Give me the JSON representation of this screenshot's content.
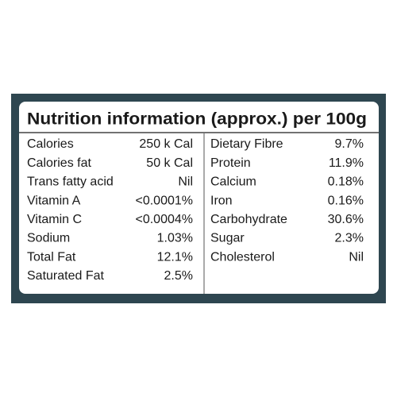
{
  "title": "Nutrition information (approx.) per 100g",
  "left": [
    [
      "Calories",
      "250 k Cal"
    ],
    [
      "Calories fat",
      "50 k Cal"
    ],
    [
      "Trans fatty acid",
      "Nil"
    ],
    [
      "Vitamin A",
      "<0.0001%"
    ],
    [
      "Vitamin C",
      "<0.0004%"
    ],
    [
      "Sodium",
      "1.03%"
    ],
    [
      "Total Fat",
      "12.1%"
    ],
    [
      "Saturated Fat",
      "2.5%"
    ]
  ],
  "right": [
    [
      "Dietary Fibre",
      "9.7%"
    ],
    [
      "Protein",
      "11.9%"
    ],
    [
      "Calcium",
      "0.18%"
    ],
    [
      "Iron",
      "0.16%"
    ],
    [
      "Carbohydrate",
      "30.6%"
    ],
    [
      "Sugar",
      "2.3%"
    ],
    [
      "Cholesterol",
      "Nil"
    ]
  ]
}
